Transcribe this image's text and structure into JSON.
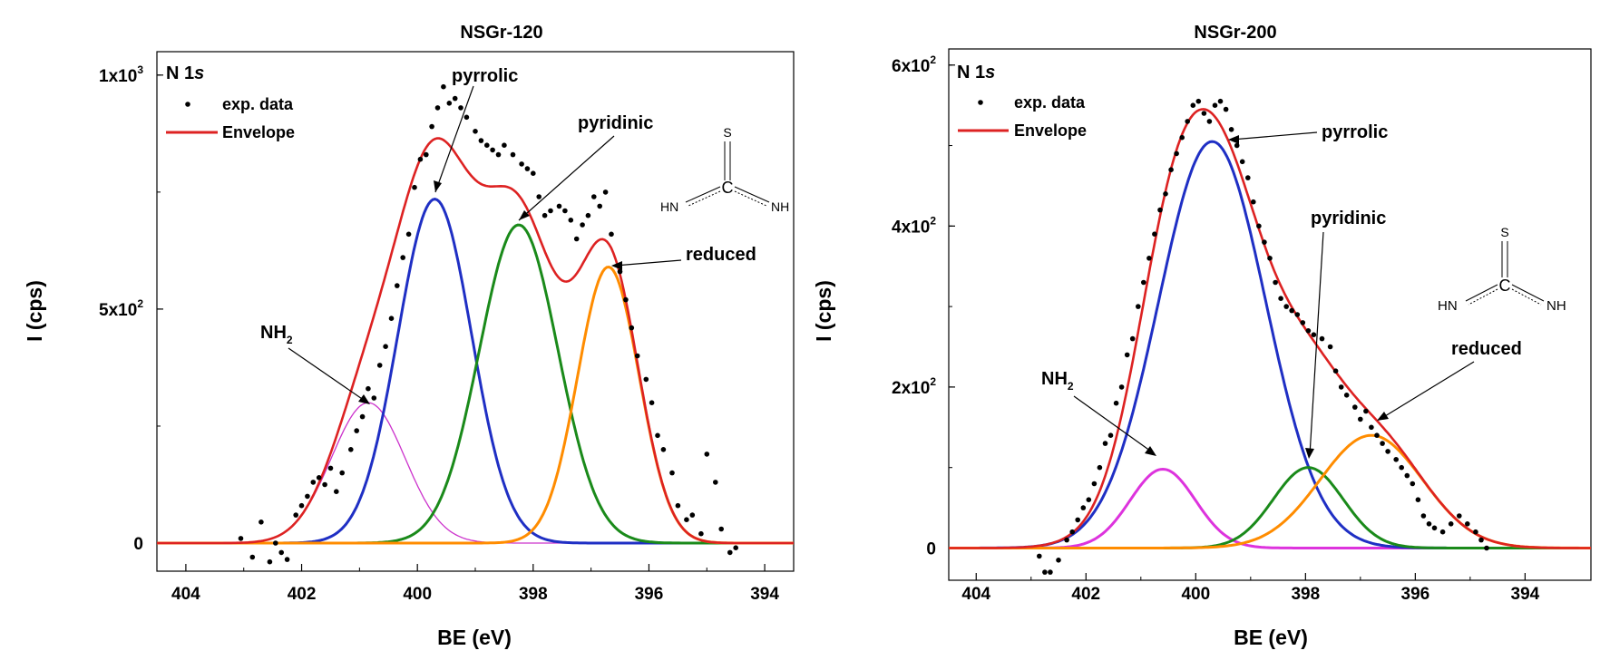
{
  "chart_data": [
    {
      "type": "line",
      "title": "NSGr-120",
      "xlabel": "BE (eV)",
      "ylabel": "I (cps)",
      "xlim": [
        404.5,
        393.5
      ],
      "ylim": [
        -60,
        1050
      ],
      "x_reversed": true,
      "x_ticks": [
        404,
        402,
        400,
        398,
        396,
        394
      ],
      "x_tick_labels": [
        "404",
        "402",
        "400",
        "398",
        "396",
        "394"
      ],
      "y_tick_labels": [
        {
          "value": 0,
          "mant": "0",
          "exp": ""
        },
        {
          "value": 500,
          "mant": "5x10",
          "exp": "2"
        },
        {
          "value": 1000,
          "mant": "1x10",
          "exp": "3"
        }
      ],
      "region_label": {
        "main": "N 1",
        "italic": "s"
      },
      "legend": [
        {
          "label": "exp. data",
          "kind": "dot"
        },
        {
          "label": "Envelope",
          "kind": "line"
        }
      ],
      "colors": {
        "envelope": "#dd2222",
        "data": "#000000"
      },
      "series": [
        {
          "name": "NH2",
          "label_main": "NH",
          "label_sub": "2",
          "center": 400.85,
          "amplitude": 300,
          "fwhm": 1.5,
          "color": "#cc33cc",
          "width": 1.3
        },
        {
          "name": "pyrrolic",
          "label_main": "pyrrolic",
          "label_sub": "",
          "center": 399.7,
          "amplitude": 735,
          "fwhm": 1.5,
          "color": "#1f2fc4",
          "width": 3
        },
        {
          "name": "pyridinic",
          "label_main": "pyridinic",
          "label_sub": "",
          "center": 398.25,
          "amplitude": 680,
          "fwhm": 1.6,
          "color": "#1a8a1a",
          "width": 3
        },
        {
          "name": "reduced",
          "label_main": "reduced",
          "label_sub": "",
          "center": 396.7,
          "amplitude": 590,
          "fwhm": 1.25,
          "color": "#ff8c00",
          "width": 3
        }
      ],
      "exp_data": [
        [
          403.05,
          10
        ],
        [
          402.85,
          -30
        ],
        [
          402.7,
          45
        ],
        [
          402.55,
          -40
        ],
        [
          402.45,
          0
        ],
        [
          402.35,
          -20
        ],
        [
          402.25,
          -35
        ],
        [
          402.1,
          60
        ],
        [
          402.0,
          80
        ],
        [
          401.9,
          100
        ],
        [
          401.8,
          130
        ],
        [
          401.7,
          140
        ],
        [
          401.6,
          125
        ],
        [
          401.5,
          160
        ],
        [
          401.4,
          110
        ],
        [
          401.3,
          150
        ],
        [
          401.15,
          200
        ],
        [
          401.05,
          240
        ],
        [
          400.95,
          270
        ],
        [
          400.85,
          330
        ],
        [
          400.75,
          310
        ],
        [
          400.65,
          380
        ],
        [
          400.55,
          420
        ],
        [
          400.45,
          480
        ],
        [
          400.35,
          550
        ],
        [
          400.25,
          610
        ],
        [
          400.15,
          660
        ],
        [
          400.05,
          760
        ],
        [
          399.95,
          820
        ],
        [
          399.85,
          830
        ],
        [
          399.75,
          890
        ],
        [
          399.65,
          930
        ],
        [
          399.55,
          975
        ],
        [
          399.45,
          940
        ],
        [
          399.35,
          950
        ],
        [
          399.25,
          930
        ],
        [
          399.15,
          910
        ],
        [
          399.0,
          880
        ],
        [
          398.9,
          860
        ],
        [
          398.8,
          850
        ],
        [
          398.7,
          840
        ],
        [
          398.6,
          830
        ],
        [
          398.5,
          850
        ],
        [
          398.35,
          830
        ],
        [
          398.2,
          810
        ],
        [
          398.1,
          800
        ],
        [
          398.0,
          790
        ],
        [
          397.9,
          740
        ],
        [
          397.8,
          700
        ],
        [
          397.7,
          710
        ],
        [
          397.55,
          720
        ],
        [
          397.45,
          710
        ],
        [
          397.35,
          690
        ],
        [
          397.25,
          650
        ],
        [
          397.15,
          680
        ],
        [
          397.05,
          700
        ],
        [
          396.95,
          740
        ],
        [
          396.85,
          720
        ],
        [
          396.75,
          750
        ],
        [
          396.65,
          660
        ],
        [
          396.5,
          580
        ],
        [
          396.4,
          520
        ],
        [
          396.3,
          460
        ],
        [
          396.2,
          400
        ],
        [
          396.05,
          350
        ],
        [
          395.95,
          300
        ],
        [
          395.85,
          230
        ],
        [
          395.75,
          200
        ],
        [
          395.6,
          150
        ],
        [
          395.5,
          80
        ],
        [
          395.35,
          50
        ],
        [
          395.25,
          60
        ],
        [
          395.1,
          20
        ],
        [
          395.0,
          190
        ],
        [
          394.85,
          130
        ],
        [
          394.75,
          30
        ],
        [
          394.6,
          -20
        ],
        [
          394.5,
          -10
        ]
      ]
    },
    {
      "type": "line",
      "title": "NSGr-200",
      "xlabel": "BE (eV)",
      "ylabel": "I (cps)",
      "xlim": [
        404.5,
        392.8
      ],
      "ylim": [
        -40,
        620
      ],
      "x_reversed": true,
      "x_ticks": [
        404,
        402,
        400,
        398,
        396,
        394
      ],
      "x_tick_labels": [
        "404",
        "402",
        "400",
        "398",
        "396",
        "394"
      ],
      "y_tick_labels": [
        {
          "value": 0,
          "mant": "0",
          "exp": ""
        },
        {
          "value": 200,
          "mant": "2x10",
          "exp": "2"
        },
        {
          "value": 400,
          "mant": "4x10",
          "exp": "2"
        },
        {
          "value": 600,
          "mant": "6x10",
          "exp": "2"
        }
      ],
      "region_label": {
        "main": "N 1",
        "italic": "s"
      },
      "legend": [
        {
          "label": "exp. data",
          "kind": "dot"
        },
        {
          "label": "Envelope",
          "kind": "line"
        }
      ],
      "colors": {
        "envelope": "#dd2222",
        "data": "#000000"
      },
      "series": [
        {
          "name": "NH2",
          "label_main": "NH",
          "label_sub": "2",
          "center": 400.6,
          "amplitude": 98,
          "fwhm": 1.4,
          "color": "#dd33dd",
          "width": 3
        },
        {
          "name": "pyrrolic",
          "label_main": "pyrrolic",
          "label_sub": "",
          "center": 399.7,
          "amplitude": 505,
          "fwhm": 2.3,
          "color": "#1f2fc4",
          "width": 3
        },
        {
          "name": "pyridinic",
          "label_main": "pyridinic",
          "label_sub": "",
          "center": 397.95,
          "amplitude": 100,
          "fwhm": 1.5,
          "color": "#1a8a1a",
          "width": 3
        },
        {
          "name": "reduced",
          "label_main": "reduced",
          "label_sub": "",
          "center": 396.8,
          "amplitude": 140,
          "fwhm": 2.2,
          "color": "#ff8c00",
          "width": 3
        }
      ],
      "exp_data": [
        [
          402.85,
          -10
        ],
        [
          402.75,
          -30
        ],
        [
          402.65,
          -30
        ],
        [
          402.5,
          -15
        ],
        [
          402.35,
          10
        ],
        [
          402.25,
          20
        ],
        [
          402.15,
          35
        ],
        [
          402.05,
          50
        ],
        [
          401.95,
          60
        ],
        [
          401.85,
          80
        ],
        [
          401.75,
          100
        ],
        [
          401.65,
          130
        ],
        [
          401.55,
          140
        ],
        [
          401.45,
          180
        ],
        [
          401.35,
          200
        ],
        [
          401.25,
          240
        ],
        [
          401.15,
          260
        ],
        [
          401.05,
          300
        ],
        [
          400.95,
          330
        ],
        [
          400.85,
          360
        ],
        [
          400.75,
          390
        ],
        [
          400.65,
          420
        ],
        [
          400.55,
          440
        ],
        [
          400.45,
          470
        ],
        [
          400.35,
          490
        ],
        [
          400.25,
          510
        ],
        [
          400.15,
          530
        ],
        [
          400.05,
          550
        ],
        [
          399.95,
          555
        ],
        [
          399.85,
          540
        ],
        [
          399.75,
          530
        ],
        [
          399.65,
          550
        ],
        [
          399.55,
          555
        ],
        [
          399.45,
          545
        ],
        [
          399.35,
          520
        ],
        [
          399.25,
          500
        ],
        [
          399.15,
          480
        ],
        [
          399.05,
          460
        ],
        [
          398.95,
          430
        ],
        [
          398.85,
          400
        ],
        [
          398.75,
          380
        ],
        [
          398.65,
          360
        ],
        [
          398.55,
          330
        ],
        [
          398.45,
          310
        ],
        [
          398.35,
          300
        ],
        [
          398.25,
          295
        ],
        [
          398.15,
          290
        ],
        [
          398.05,
          280
        ],
        [
          397.95,
          270
        ],
        [
          397.85,
          265
        ],
        [
          397.7,
          260
        ],
        [
          397.55,
          250
        ],
        [
          397.45,
          220
        ],
        [
          397.35,
          200
        ],
        [
          397.25,
          190
        ],
        [
          397.1,
          175
        ],
        [
          397.0,
          160
        ],
        [
          396.9,
          170
        ],
        [
          396.8,
          150
        ],
        [
          396.7,
          140
        ],
        [
          396.6,
          130
        ],
        [
          396.5,
          120
        ],
        [
          396.35,
          110
        ],
        [
          396.25,
          100
        ],
        [
          396.15,
          90
        ],
        [
          396.05,
          80
        ],
        [
          395.95,
          60
        ],
        [
          395.85,
          40
        ],
        [
          395.75,
          30
        ],
        [
          395.65,
          25
        ],
        [
          395.5,
          20
        ],
        [
          395.35,
          30
        ],
        [
          395.2,
          40
        ],
        [
          395.05,
          30
        ],
        [
          394.9,
          20
        ],
        [
          394.8,
          10
        ],
        [
          394.7,
          0
        ]
      ]
    }
  ],
  "structure": {
    "top": "S",
    "center": "C",
    "left": "HN",
    "right": "NH"
  }
}
